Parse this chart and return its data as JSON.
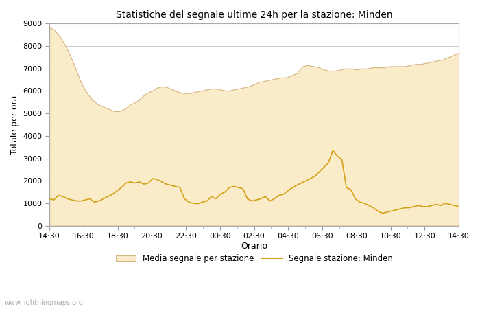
{
  "title": "Statistiche del segnale ultime 24h per la stazione: Minden",
  "xlabel": "Orario",
  "ylabel": "Totale per ora",
  "ylim": [
    0,
    9000
  ],
  "yticks": [
    0,
    1000,
    2000,
    3000,
    4000,
    5000,
    6000,
    7000,
    8000,
    9000
  ],
  "xtick_labels": [
    "14:30",
    "16:30",
    "18:30",
    "20:30",
    "22:30",
    "00:30",
    "02:30",
    "04:30",
    "06:30",
    "08:30",
    "10:30",
    "12:30",
    "14:30"
  ],
  "background_color": "#ffffff",
  "plot_bg_color": "#ffffff",
  "fill_color": "#faecc8",
  "fill_edge_color": "#d4b483",
  "line_color": "#d4a017",
  "grid_color": "#cccccc",
  "watermark": "www.lightningmaps.org",
  "legend_fill_label": "Media segnale per stazione",
  "legend_line_label": "Segnale stazione: Minden",
  "avg_signal": [
    8850,
    8700,
    8400,
    8000,
    7500,
    6900,
    6300,
    5900,
    5600,
    5400,
    5300,
    5200,
    5100,
    5100,
    5200,
    5400,
    5500,
    5700,
    5900,
    6000,
    6150,
    6200,
    6150,
    6050,
    5950,
    5900,
    5900,
    5950,
    6000,
    6050,
    6100,
    6100,
    6050,
    6000,
    6050,
    6100,
    6150,
    6200,
    6300,
    6400,
    6450,
    6500,
    6550,
    6600,
    6600,
    6700,
    6800,
    7100,
    7150,
    7100,
    7050,
    6950,
    6900,
    6900,
    6950,
    7000,
    7000,
    6950,
    7000,
    7000,
    7050,
    7050,
    7050,
    7100,
    7100,
    7100,
    7100,
    7150,
    7200,
    7200,
    7250,
    7300,
    7350,
    7400,
    7500,
    7600,
    7700
  ],
  "station_signal": [
    1200,
    1150,
    1350,
    1300,
    1200,
    1150,
    1100,
    1100,
    1150,
    1200,
    1050,
    1100,
    1200,
    1300,
    1400,
    1550,
    1700,
    1900,
    1950,
    1900,
    1950,
    1850,
    1900,
    2100,
    2050,
    1950,
    1850,
    1800,
    1750,
    1700,
    1200,
    1050,
    1000,
    980,
    1050,
    1100,
    1300,
    1200,
    1400,
    1500,
    1700,
    1750,
    1700,
    1650,
    1200,
    1100,
    1150,
    1200,
    1300,
    1100,
    1200,
    1350,
    1400,
    1550,
    1700,
    1800,
    1900,
    2000,
    2100,
    2200,
    2400,
    2600,
    2800,
    3350,
    3100,
    2950,
    1700,
    1600,
    1200,
    1050,
    1000,
    900,
    800,
    650,
    550,
    600,
    650,
    700,
    750,
    800,
    800,
    850,
    900,
    850,
    850,
    900,
    950,
    900,
    1000,
    950,
    900,
    850
  ]
}
